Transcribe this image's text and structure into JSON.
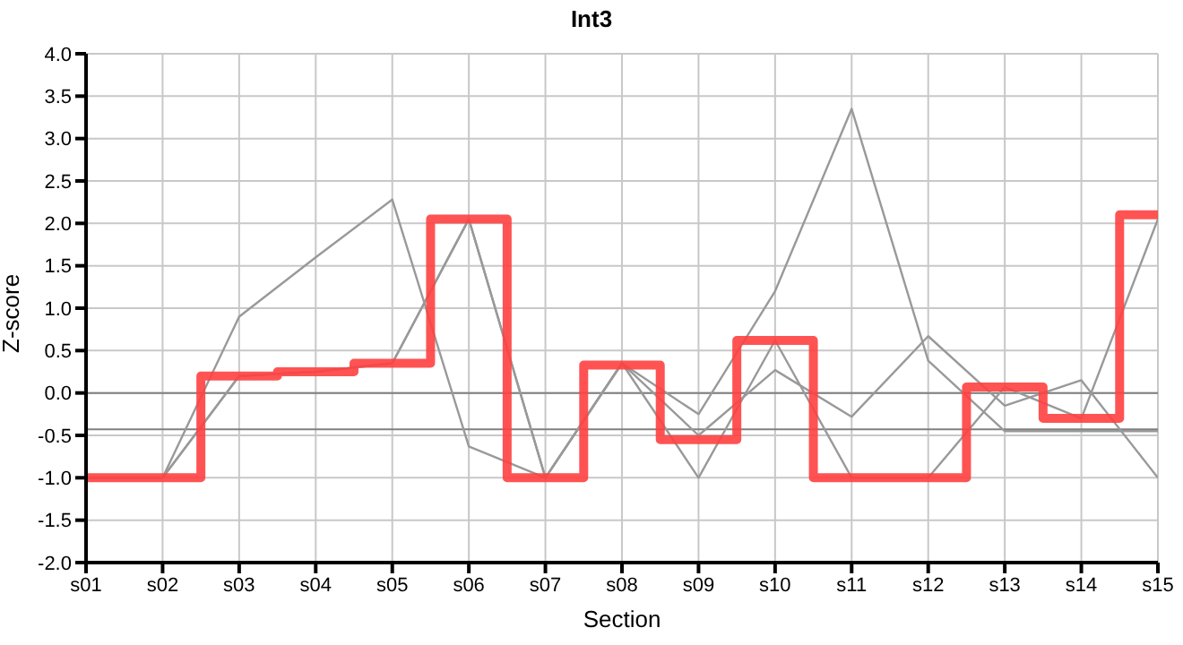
{
  "chart_data": {
    "type": "line",
    "title": "Int3",
    "xlabel": "Section",
    "ylabel": "Z-score",
    "categories": [
      "s01",
      "s02",
      "s03",
      "s04",
      "s05",
      "s06",
      "s07",
      "s08",
      "s09",
      "s10",
      "s11",
      "s12",
      "s13",
      "s14",
      "s15"
    ],
    "series": [
      {
        "color": "#999999",
        "values": [
          -1.0,
          -1.0,
          0.9,
          1.6,
          2.28,
          -0.63,
          -1.0,
          0.35,
          -0.25,
          1.2,
          3.35,
          0.38,
          -0.45,
          -0.45,
          -0.45
        ]
      },
      {
        "color": "#999999",
        "values": [
          -1.0,
          -1.0,
          0.2,
          0.25,
          0.35,
          2.05,
          -1.0,
          0.35,
          -0.5,
          0.27,
          -0.28,
          0.67,
          -0.15,
          0.15,
          -1.0
        ]
      },
      {
        "color": "#999999",
        "values": [
          -1.0,
          -1.0,
          0.2,
          0.25,
          0.35,
          2.05,
          -1.0,
          0.35,
          -1.0,
          0.62,
          -1.0,
          -1.0,
          0.07,
          -0.3,
          2.05
        ]
      },
      {
        "type": "step",
        "color": "#ff4040",
        "values": [
          -1.0,
          -1.0,
          0.2,
          0.25,
          0.35,
          2.05,
          -1.0,
          0.33,
          -0.55,
          0.62,
          -1.0,
          -1.0,
          0.07,
          -0.3,
          2.1
        ]
      }
    ],
    "ylim": [
      -2.0,
      4.0
    ],
    "yticks": [
      {
        "value": -2,
        "label": "-2.0"
      },
      {
        "value": -1.5,
        "label": "-1.5"
      },
      {
        "value": -1,
        "label": "-1.0"
      },
      {
        "value": -0.5,
        "label": "-0.5"
      },
      {
        "value": 0,
        "label": "0.0"
      },
      {
        "value": 0.5,
        "label": "0.5"
      },
      {
        "value": 1,
        "label": "1.0"
      },
      {
        "value": 1.5,
        "label": "1.5"
      },
      {
        "value": 2,
        "label": "2.0"
      },
      {
        "value": 2.5,
        "label": "2.5"
      },
      {
        "value": 3,
        "label": "3.0"
      },
      {
        "value": 3.5,
        "label": "3.5"
      },
      {
        "value": 4,
        "label": "4.0"
      }
    ],
    "ref_lines": [
      {
        "axis": "y",
        "value": 0,
        "color": "#808080"
      },
      {
        "axis": "y",
        "value": -0.43,
        "color": "#808080"
      }
    ],
    "grid": true,
    "legend": false
  }
}
